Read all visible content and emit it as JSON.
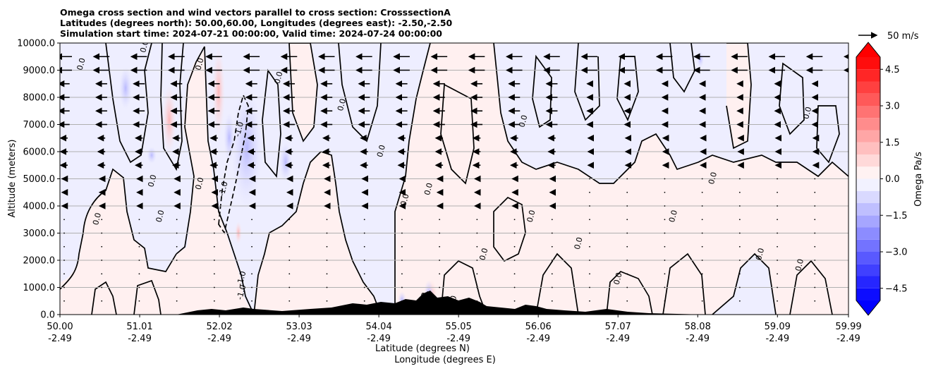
{
  "chart_data": {
    "type": "heatmap",
    "title_lines": [
      "Omega cross section and wind vectors parallel to cross section: CrosssectionA",
      "Latitudes (degrees north): 50.00,60.00, Longitudes (degrees east): -2.50,-2.50",
      "Simulation start time: 2024-07-21 00:00:00, Valid time: 2024-07-24 00:00:00"
    ],
    "ylabel": "Altitude (meters)",
    "xlabel_lat": "Latitude (degrees N)",
    "xlabel_lon": "Longitude (degrees E)",
    "xlim": [
      50.0,
      59.99
    ],
    "ylim": [
      0,
      10000
    ],
    "x_ticks": [
      {
        "lat": "50.00",
        "lon": "-2.49",
        "value": 50.0
      },
      {
        "lat": "51.01",
        "lon": "-2.49",
        "value": 51.01
      },
      {
        "lat": "52.02",
        "lon": "-2.49",
        "value": 52.02
      },
      {
        "lat": "53.03",
        "lon": "-2.49",
        "value": 53.03
      },
      {
        "lat": "54.04",
        "lon": "-2.49",
        "value": 54.04
      },
      {
        "lat": "55.05",
        "lon": "-2.49",
        "value": 55.05
      },
      {
        "lat": "56.06",
        "lon": "-2.49",
        "value": 56.06
      },
      {
        "lat": "57.07",
        "lon": "-2.49",
        "value": 57.07
      },
      {
        "lat": "58.08",
        "lon": "-2.49",
        "value": 58.08
      },
      {
        "lat": "59.09",
        "lon": "-2.49",
        "value": 59.09
      },
      {
        "lat": "59.99",
        "lon": "-2.49",
        "value": 59.99
      }
    ],
    "y_ticks": [
      {
        "label": "0.0",
        "value": 0
      },
      {
        "label": "1000.0",
        "value": 1000
      },
      {
        "label": "2000.0",
        "value": 2000
      },
      {
        "label": "3000.0",
        "value": 3000
      },
      {
        "label": "4000.0",
        "value": 4000
      },
      {
        "label": "5000.0",
        "value": 5000
      },
      {
        "label": "6000.0",
        "value": 6000
      },
      {
        "label": "7000.0",
        "value": 7000
      },
      {
        "label": "8000.0",
        "value": 8000
      },
      {
        "label": "9000.0",
        "value": 9000
      },
      {
        "label": "10000.0",
        "value": 10000
      }
    ],
    "grid": true,
    "colorbar": {
      "label": "Omega Pa/s",
      "range": [
        -5.0,
        5.0
      ],
      "ticks": [
        {
          "label": "4.5",
          "value": 4.5
        },
        {
          "label": "3.0",
          "value": 3.0
        },
        {
          "label": "1.5",
          "value": 1.5
        },
        {
          "label": "0.0",
          "value": 0.0
        },
        {
          "label": "−1.5",
          "value": -1.5
        },
        {
          "label": "−3.0",
          "value": -3.0
        },
        {
          "label": "−4.5",
          "value": -4.5
        }
      ],
      "levels": 20,
      "cmap": "bwr"
    },
    "quiver_key": {
      "label": "50 m/s",
      "value": 50
    },
    "contour_labels": [
      {
        "text": "0.0",
        "lat": 51.1,
        "alt": 9850
      },
      {
        "text": "0.0",
        "lat": 50.3,
        "alt": 9200
      },
      {
        "text": "0.0",
        "lat": 51.8,
        "alt": 9200
      },
      {
        "text": "0.0",
        "lat": 52.8,
        "alt": 8700
      },
      {
        "text": "0.0",
        "lat": 53.6,
        "alt": 7700
      },
      {
        "text": "-1.0",
        "lat": 52.3,
        "alt": 6800
      },
      {
        "text": "-1.0",
        "lat": 52.1,
        "alt": 4600
      },
      {
        "text": "0.0",
        "lat": 51.2,
        "alt": 4900
      },
      {
        "text": "0.0",
        "lat": 51.8,
        "alt": 4800
      },
      {
        "text": "0.0",
        "lat": 50.5,
        "alt": 3500
      },
      {
        "text": "0.0",
        "lat": 51.3,
        "alt": 3600
      },
      {
        "text": "0.0",
        "lat": 54.7,
        "alt": 4600
      },
      {
        "text": "0.0",
        "lat": 54.4,
        "alt": 4200
      },
      {
        "text": "0.0",
        "lat": 54.1,
        "alt": 6000
      },
      {
        "text": "0.0",
        "lat": 55.9,
        "alt": 7100
      },
      {
        "text": "0.0",
        "lat": 56.0,
        "alt": 3600
      },
      {
        "text": "0.0",
        "lat": 57.1,
        "alt": 1300
      },
      {
        "text": "-1.0",
        "lat": 52.33,
        "alt": 1300
      },
      {
        "text": "-1.0",
        "lat": 52.33,
        "alt": 800
      },
      {
        "text": "0.0",
        "lat": 55.4,
        "alt": 2200
      },
      {
        "text": "0.0",
        "lat": 56.6,
        "alt": 2600
      },
      {
        "text": "0.0",
        "lat": 57.8,
        "alt": 3600
      },
      {
        "text": "0.0",
        "lat": 58.3,
        "alt": 5000
      },
      {
        "text": "0.0",
        "lat": 59.5,
        "alt": 7400
      },
      {
        "text": "0.0",
        "lat": 59.4,
        "alt": 1800
      },
      {
        "text": "0.0",
        "lat": 58.9,
        "alt": 2200
      },
      {
        "text": "-2.",
        "lat": 54.65,
        "alt": 700
      },
      {
        "text": "-1.0",
        "lat": 55.0,
        "alt": 400
      }
    ]
  }
}
